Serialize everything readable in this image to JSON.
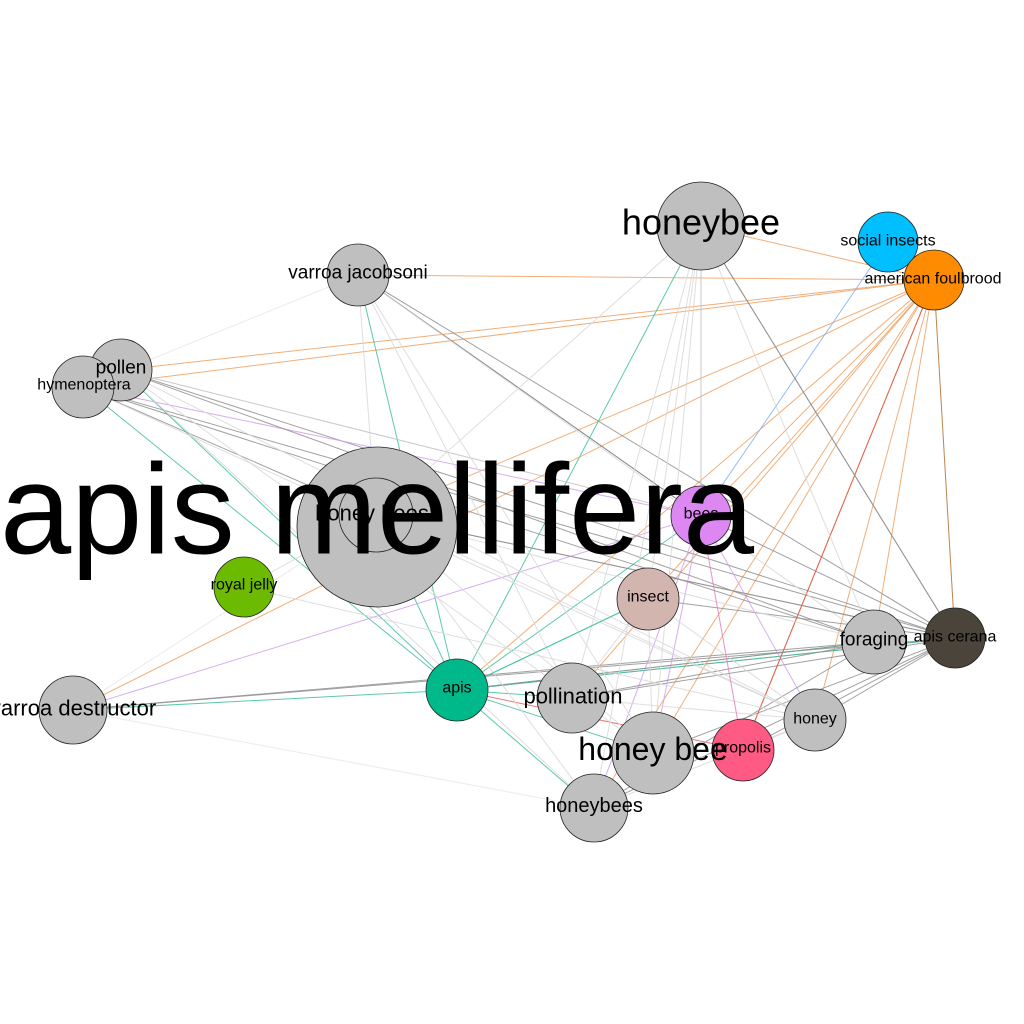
{
  "nodes": [
    {
      "id": "honeybee",
      "label": "honeybee",
      "color": "#bfbfbf"
    },
    {
      "id": "social-insects",
      "label": "social insects",
      "color": "#00bfff"
    },
    {
      "id": "american-foulbrood",
      "label": "american foulbrood",
      "color": "#ff8c00"
    },
    {
      "id": "varroa-jacobsoni",
      "label": "varroa jacobsoni",
      "color": "#bfbfbf"
    },
    {
      "id": "pollen",
      "label": "pollen",
      "color": "#bfbfbf"
    },
    {
      "id": "hymenoptera",
      "label": "hymenoptera",
      "color": "#bfbfbf"
    },
    {
      "id": "apis-mellifera",
      "label": "apis mellifera",
      "color": "#bfbfbf"
    },
    {
      "id": "honey-bees",
      "label": "honey bees",
      "color": "#bfbfbf"
    },
    {
      "id": "bees",
      "label": "bees",
      "color": "#dd88f2"
    },
    {
      "id": "royal-jelly",
      "label": "royal jelly",
      "color": "#6cbb00"
    },
    {
      "id": "insect",
      "label": "insect",
      "color": "#d3b5b0"
    },
    {
      "id": "foraging",
      "label": "foraging",
      "color": "#bfbfbf"
    },
    {
      "id": "apis-cerana",
      "label": "apis cerana",
      "color": "#4a443b"
    },
    {
      "id": "apis",
      "label": "apis",
      "color": "#00b98a"
    },
    {
      "id": "pollination",
      "label": "pollination",
      "color": "#bfbfbf"
    },
    {
      "id": "varroa-destructor",
      "label": "varroa destructor",
      "color": "#bfbfbf"
    },
    {
      "id": "honey",
      "label": "honey",
      "color": "#bfbfbf"
    },
    {
      "id": "honey-bee",
      "label": "honey bee",
      "color": "#bfbfbf"
    },
    {
      "id": "propolis",
      "label": "propolis",
      "color": "#ff5a84"
    },
    {
      "id": "honeybees",
      "label": "honeybees",
      "color": "#bfbfbf"
    }
  ],
  "edges": [
    [
      "american-foulbrood",
      "honeybee",
      "#f0a060"
    ],
    [
      "american-foulbrood",
      "varroa-jacobsoni",
      "#f0a060"
    ],
    [
      "american-foulbrood",
      "pollen",
      "#f0a060"
    ],
    [
      "american-foulbrood",
      "hymenoptera",
      "#f0a060"
    ],
    [
      "american-foulbrood",
      "bees",
      "#f0a060"
    ],
    [
      "american-foulbrood",
      "insect",
      "#f0a060"
    ],
    [
      "american-foulbrood",
      "apis",
      "#f0a060"
    ],
    [
      "american-foulbrood",
      "pollination",
      "#f0a060"
    ],
    [
      "american-foulbrood",
      "honey-bee",
      "#f0a060"
    ],
    [
      "american-foulbrood",
      "propolis",
      "#f0a060"
    ],
    [
      "american-foulbrood",
      "honey",
      "#f0a060"
    ],
    [
      "american-foulbrood",
      "foraging",
      "#f0a060"
    ],
    [
      "american-foulbrood",
      "apis-cerana",
      "#b07030"
    ],
    [
      "american-foulbrood",
      "honeybees",
      "#f0a060"
    ],
    [
      "american-foulbrood",
      "honey-bees",
      "#f0a060"
    ],
    [
      "american-foulbrood",
      "varroa-destructor",
      "#f0a060"
    ],
    [
      "social-insects",
      "bees",
      "#80b0f0"
    ],
    [
      "apis-cerana",
      "honeybee",
      "#909090"
    ],
    [
      "apis-cerana",
      "hymenoptera",
      "#909090"
    ],
    [
      "apis-cerana",
      "pollen",
      "#909090"
    ],
    [
      "apis-cerana",
      "varroa-jacobsoni",
      "#909090"
    ],
    [
      "apis-cerana",
      "apis",
      "#909090"
    ],
    [
      "apis-cerana",
      "pollination",
      "#909090"
    ],
    [
      "apis-cerana",
      "honeybees",
      "#909090"
    ],
    [
      "apis-cerana",
      "honey-bee",
      "#909090"
    ],
    [
      "apis-cerana",
      "honey",
      "#909090"
    ],
    [
      "apis-cerana",
      "propolis",
      "#909090"
    ],
    [
      "apis-cerana",
      "varroa-destructor",
      "#909090"
    ],
    [
      "apis-cerana",
      "insect",
      "#909090"
    ],
    [
      "apis-cerana",
      "bees",
      "#909090"
    ],
    [
      "apis-cerana",
      "honey-bees",
      "#909090"
    ],
    [
      "apis",
      "honeybee",
      "#40c0a0"
    ],
    [
      "apis",
      "varroa-jacobsoni",
      "#40c0a0"
    ],
    [
      "apis",
      "hymenoptera",
      "#40c0a0"
    ],
    [
      "apis",
      "pollen",
      "#40c0a0"
    ],
    [
      "apis",
      "honey-bees",
      "#40c0a0"
    ],
    [
      "apis",
      "insect",
      "#40c0a0"
    ],
    [
      "apis",
      "bees",
      "#40c0a0"
    ],
    [
      "apis",
      "foraging",
      "#40c0a0"
    ],
    [
      "apis",
      "apis-cerana",
      "#40c0a0"
    ],
    [
      "apis",
      "honeybees",
      "#40c0a0"
    ],
    [
      "apis",
      "varroa-destructor",
      "#40c0a0"
    ],
    [
      "apis",
      "pollination",
      "#40c0a0"
    ],
    [
      "apis",
      "honey-bee",
      "#40c0a0"
    ],
    [
      "bees",
      "hymenoptera",
      "#d0a0f0"
    ],
    [
      "bees",
      "varroa-destructor",
      "#d0a0f0"
    ],
    [
      "bees",
      "honey-bee",
      "#d0a0f0"
    ],
    [
      "bees",
      "honey",
      "#d0a0f0"
    ],
    [
      "bees",
      "honeybees",
      "#d0a0f0"
    ],
    [
      "bees",
      "honeybee",
      "#c0c0c0"
    ],
    [
      "bees",
      "pollen",
      "#c0c0c0"
    ],
    [
      "bees",
      "varroa-jacobsoni",
      "#707070"
    ],
    [
      "propolis",
      "apis",
      "#e06060"
    ],
    [
      "propolis",
      "american-foulbrood",
      "#e05040"
    ],
    [
      "foraging",
      "hymenoptera",
      "#909090"
    ],
    [
      "foraging",
      "pollen",
      "#909090"
    ],
    [
      "foraging",
      "apis",
      "#909090"
    ],
    [
      "foraging",
      "honeybees",
      "#909090"
    ],
    [
      "foraging",
      "varroa-destructor",
      "#909090"
    ],
    [
      "foraging",
      "pollination",
      "#909090"
    ],
    [
      "honeybee",
      "honey-bees",
      "#d8d8d8"
    ],
    [
      "honeybee",
      "pollination",
      "#d8d8d8"
    ],
    [
      "honeybee",
      "honeybees",
      "#d8d8d8"
    ],
    [
      "honeybee",
      "honey-bee",
      "#d8d8d8"
    ],
    [
      "honeybee",
      "foraging",
      "#d8d8d8"
    ],
    [
      "honeybee",
      "apis-cerana",
      "#909090"
    ],
    [
      "honeybee",
      "insect",
      "#d8d8d8"
    ],
    [
      "varroa-jacobsoni",
      "honey-bees",
      "#d8d8d8"
    ],
    [
      "varroa-jacobsoni",
      "foraging",
      "#d8d8d8"
    ],
    [
      "varroa-jacobsoni",
      "honey-bee",
      "#d8d8d8"
    ],
    [
      "varroa-jacobsoni",
      "pollination",
      "#d8d8d8"
    ],
    [
      "varroa-jacobsoni",
      "hymenoptera",
      "#e8e8e8"
    ],
    [
      "hymenoptera",
      "honey-bees",
      "#909090"
    ],
    [
      "hymenoptera",
      "honey",
      "#d8d8d8"
    ],
    [
      "pollen",
      "honey-bee",
      "#d8d8d8"
    ],
    [
      "pollen",
      "honey",
      "#d8d8d8"
    ],
    [
      "pollen",
      "honeybees",
      "#d8d8d8"
    ],
    [
      "honey-bees",
      "honeybees",
      "#d8d8d8"
    ],
    [
      "honey-bees",
      "honey",
      "#d8d8d8"
    ],
    [
      "honey-bees",
      "honey-bee",
      "#d8d8d8"
    ],
    [
      "honey-bees",
      "foraging",
      "#d8d8d8"
    ],
    [
      "honey-bees",
      "apis-cerana",
      "#909090"
    ],
    [
      "varroa-destructor",
      "honeybees",
      "#e8e8e8"
    ],
    [
      "varroa-destructor",
      "honey-bees",
      "#e8e8e8"
    ],
    [
      "royal-jelly",
      "honey-bees",
      "#d8d8d8"
    ],
    [
      "royal-jelly",
      "honey",
      "#d8d8d8"
    ],
    [
      "insect",
      "pollination",
      "#d8d8d8"
    ],
    [
      "insect",
      "honey-bee",
      "#d8d8d8"
    ],
    [
      "insect",
      "honey",
      "#d8d8d8"
    ],
    [
      "insect",
      "apis",
      "#40c0a0"
    ],
    [
      "pollination",
      "honey",
      "#d8d8d8"
    ],
    [
      "honey",
      "honeybees",
      "#d8d8d8"
    ],
    [
      "propolis",
      "honey",
      "#d8d8d8"
    ],
    [
      "propolis",
      "bees",
      "#e080c0"
    ]
  ]
}
